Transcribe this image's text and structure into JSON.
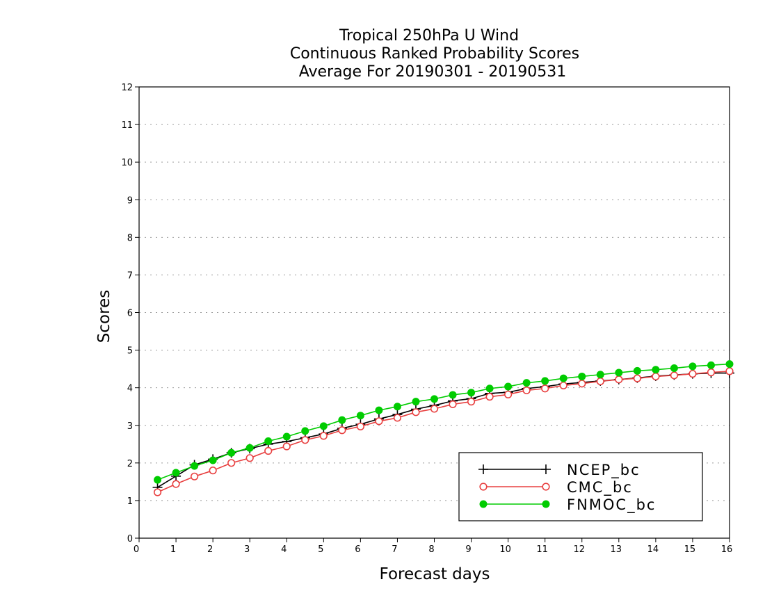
{
  "chart_data": {
    "type": "line",
    "title": [
      "Tropical 250hPa U Wind",
      "Continuous Ranked Probability Scores",
      "Average For 20190301 - 20190531"
    ],
    "xlabel": "Forecast days",
    "ylabel": "Scores",
    "xlim": [
      0,
      16
    ],
    "ylim": [
      0,
      12
    ],
    "xticks": [
      0,
      1,
      2,
      3,
      4,
      5,
      6,
      7,
      8,
      9,
      10,
      11,
      12,
      13,
      14,
      15,
      16
    ],
    "yticks": [
      0,
      1,
      2,
      3,
      4,
      5,
      6,
      7,
      8,
      9,
      10,
      11,
      12
    ],
    "grid": "horizontal dotted",
    "legend_position": "bottom-right",
    "x": [
      0.5,
      1,
      1.5,
      2,
      2.5,
      3,
      3.5,
      4,
      4.5,
      5,
      5.5,
      6,
      6.5,
      7,
      7.5,
      8,
      8.5,
      9,
      9.5,
      10,
      10.5,
      11,
      11.5,
      12,
      12.5,
      13,
      13.5,
      14,
      14.5,
      15,
      15.5,
      16
    ],
    "series": [
      {
        "name": "NCEP_bc",
        "color": "#000000",
        "marker": "plus",
        "values": [
          1.35,
          1.65,
          1.95,
          2.1,
          2.27,
          2.38,
          2.5,
          2.57,
          2.67,
          2.77,
          2.92,
          3.03,
          3.17,
          3.29,
          3.43,
          3.53,
          3.65,
          3.71,
          3.85,
          3.88,
          3.98,
          4.03,
          4.1,
          4.14,
          4.18,
          4.22,
          4.26,
          4.31,
          4.34,
          4.37,
          4.39,
          4.39
        ]
      },
      {
        "name": "CMC_bc",
        "color": "#e84040",
        "marker": "open-circle",
        "values": [
          1.22,
          1.44,
          1.64,
          1.8,
          2.0,
          2.13,
          2.32,
          2.44,
          2.61,
          2.72,
          2.87,
          2.97,
          3.11,
          3.2,
          3.35,
          3.44,
          3.56,
          3.63,
          3.76,
          3.82,
          3.93,
          3.98,
          4.06,
          4.11,
          4.17,
          4.22,
          4.25,
          4.3,
          4.33,
          4.37,
          4.41,
          4.44
        ]
      },
      {
        "name": "FNMOC_bc",
        "color": "#00cc00",
        "marker": "filled-circle",
        "values": [
          1.55,
          1.74,
          1.92,
          2.07,
          2.27,
          2.4,
          2.58,
          2.7,
          2.85,
          2.98,
          3.14,
          3.26,
          3.4,
          3.5,
          3.63,
          3.7,
          3.81,
          3.87,
          3.98,
          4.03,
          4.13,
          4.18,
          4.25,
          4.3,
          4.35,
          4.4,
          4.45,
          4.48,
          4.52,
          4.57,
          4.6,
          4.63
        ]
      }
    ]
  }
}
